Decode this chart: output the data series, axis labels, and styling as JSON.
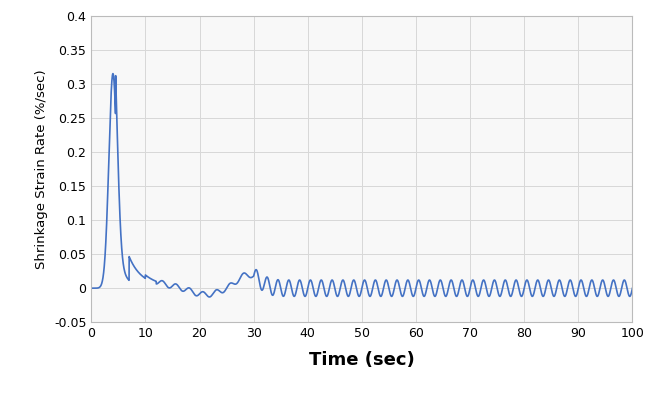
{
  "title": "",
  "xlabel": "Time (sec)",
  "ylabel": "Shrinkage Strain Rate (%/sec)",
  "xlim": [
    0,
    100
  ],
  "ylim": [
    -0.05,
    0.4
  ],
  "yticks": [
    -0.05,
    0,
    0.05,
    0.1,
    0.15,
    0.2,
    0.25,
    0.3,
    0.35,
    0.4
  ],
  "xticks": [
    0,
    10,
    20,
    30,
    40,
    50,
    60,
    70,
    80,
    90,
    100
  ],
  "line_color": "#4472C4",
  "line_width": 1.2,
  "background_color": "#ffffff",
  "plot_bg_color": "#f8f8f8",
  "grid_color": "#d8d8d8",
  "xlabel_fontsize": 13,
  "ylabel_fontsize": 9.5,
  "tick_fontsize": 9
}
